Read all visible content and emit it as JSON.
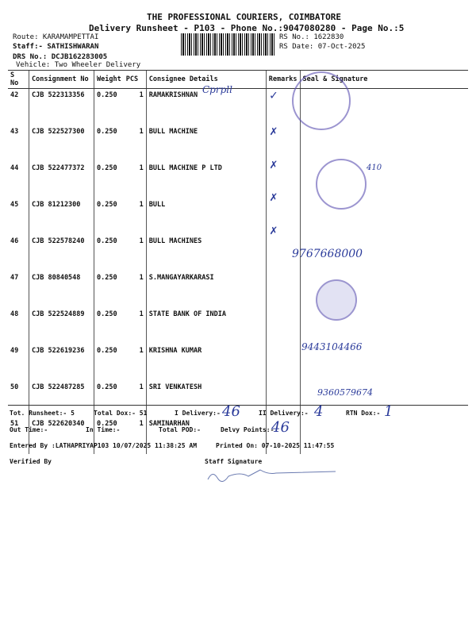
{
  "header": {
    "company": "THE PROFESSIONAL COURIERS, COIMBATORE",
    "subtitle": "Delivery Runsheet - P103 - Phone No.:9047080280 - Page No.:5",
    "route": "Route: KARAMAMPETTAI",
    "staff": "Staff:- SATHISHWARAN",
    "drs": "DRS No.: DCJB162283005",
    "vehicle": "Vehicle: Two Wheeler Delivery",
    "rs_no": "RS No.: 1622830",
    "rs_date": "RS Date: 07-Oct-2025"
  },
  "columns": [
    "S No",
    "Consignment No",
    "Weight",
    "PCS",
    "Consignee Details",
    "Remarks",
    "Seal & Signature"
  ],
  "rows": [
    {
      "sno": "42",
      "cn": "CJB 522313356",
      "wt": "0.250",
      "pcs": "1",
      "name": "RAMAKRISHNAN"
    },
    {
      "sno": "43",
      "cn": "CJB 522527300",
      "wt": "0.250",
      "pcs": "1",
      "name": "BULL MACHINE"
    },
    {
      "sno": "44",
      "cn": "CJB 522477372",
      "wt": "0.250",
      "pcs": "1",
      "name": "BULL MACHINE P LTD"
    },
    {
      "sno": "45",
      "cn": "CJB 81212300",
      "wt": "0.250",
      "pcs": "1",
      "name": "BULL"
    },
    {
      "sno": "46",
      "cn": "CJB 522578240",
      "wt": "0.250",
      "pcs": "1",
      "name": "BULL MACHINES"
    },
    {
      "sno": "47",
      "cn": "CJB 80840548",
      "wt": "0.250",
      "pcs": "1",
      "name": "S.MANGAYARKARASI"
    },
    {
      "sno": "48",
      "cn": "CJB 522524889",
      "wt": "0.250",
      "pcs": "1",
      "name": "STATE BANK OF INDIA"
    },
    {
      "sno": "49",
      "cn": "CJB 522619236",
      "wt": "0.250",
      "pcs": "1",
      "name": "KRISHNA KUMAR"
    },
    {
      "sno": "50",
      "cn": "CJB 522487285",
      "wt": "0.250",
      "pcs": "1",
      "name": "SRI VENKATESH"
    },
    {
      "sno": "51",
      "cn": "CJB 522620340",
      "wt": "0.250",
      "pcs": "1",
      "name": "SAMINARHAN"
    }
  ],
  "footer": {
    "tot_runsheet": "Tot. Runsheet:- 5",
    "total_dox": "Total Dox:-   51",
    "i_delivery": "I Delivery:-",
    "i_delivery_val": "46",
    "ii_delivery": "II Delivery:-",
    "ii_delivery_val": "4",
    "rtn_dox": "RTN Dox:-",
    "rtn_dox_val": "1",
    "out_time": "Out Time:-",
    "in_time": "In Time:-",
    "total_pod": "Total POD:-",
    "delvy_points": "Delvy Points:-",
    "delvy_points_val": "46",
    "entered_by": "Entered By :LATHAPRIYAP103 10/07/2025 11:38:25 AM",
    "printed_on": "Printed On: 07-10-2025 11:47:55",
    "verified_by": "Verified By",
    "staff_signature": "Staff Signature"
  },
  "handwriting": {
    "r42": "Cprpll",
    "r47": "9767668000",
    "r49": "9443104466",
    "r51": "9360579674",
    "r44": "410"
  }
}
